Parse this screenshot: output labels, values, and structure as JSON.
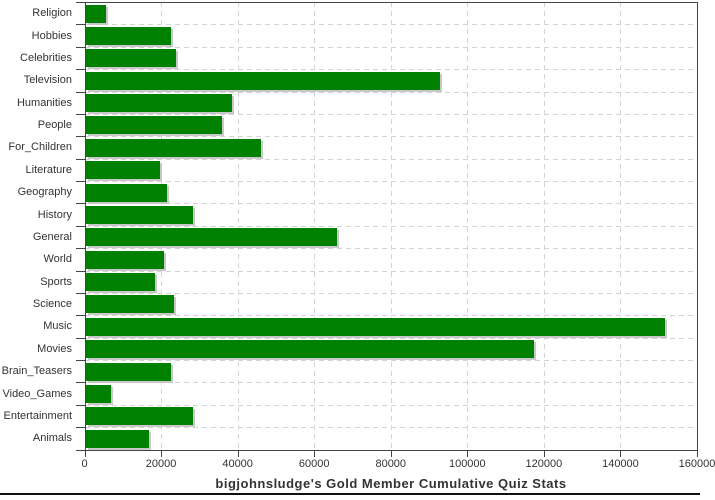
{
  "chart_data": {
    "type": "bar",
    "orientation": "horizontal",
    "title": "bigjohnsludge's Gold Member Cumulative Quiz Stats",
    "categories": [
      "Religion",
      "Hobbies",
      "Celebrities",
      "Television",
      "Humanities",
      "People",
      "For_Children",
      "Literature",
      "Geography",
      "History",
      "General",
      "World",
      "Sports",
      "Science",
      "Music",
      "Movies",
      "Brain_Teasers",
      "Video_Games",
      "Entertainment",
      "Animals"
    ],
    "values": [
      5600,
      22600,
      23900,
      92900,
      38600,
      36000,
      46100,
      19600,
      21500,
      28400,
      65900,
      20700,
      18300,
      23400,
      151700,
      117300,
      22600,
      6900,
      28400,
      16900
    ],
    "xlim": [
      0,
      160000
    ],
    "x_ticks": [
      0,
      20000,
      40000,
      60000,
      80000,
      100000,
      120000,
      140000,
      160000
    ],
    "grid": true,
    "legend": "none",
    "bar_color": "#008000",
    "shadow_color": "#c8c8c8",
    "grid_color": "#d4d4d4",
    "axis_color": "#444444",
    "label_color": "#333333",
    "title_color": "#333333",
    "bottom_rule_color": "#111111"
  }
}
